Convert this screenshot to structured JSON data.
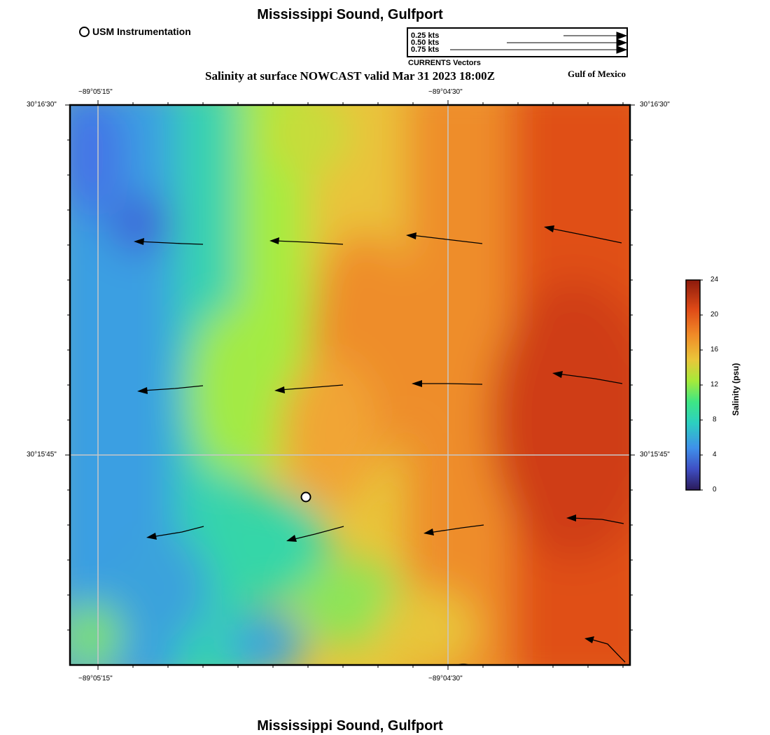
{
  "header": {
    "title": "Mississippi Sound, Gulfport",
    "footer_title": "Mississippi Sound, Gulfport",
    "subtitle": "Salinity at surface NOWCAST valid Mar 31 2023 18:00Z",
    "region": "Gulf of Mexico"
  },
  "legend": {
    "instrument_label": "USM Instrumentation",
    "vector_scale": [
      "0.25 kts",
      "0.50 kts",
      "0.75 kts"
    ],
    "vector_caption": "CURRENTS Vectors"
  },
  "map": {
    "lon_labels_top": [
      "−89°05'15\"",
      "−89°04'30\""
    ],
    "lon_labels_bottom": [
      "−89°05'15\"",
      "−89°04'30\""
    ],
    "lat_labels_left": [
      "30°16'30\"",
      "30°15'45\""
    ],
    "lat_labels_right": [
      "30°16'30\"",
      "30°15'45\""
    ],
    "instrument_station": "usm-station"
  },
  "colorbar": {
    "title": "Salinity (psu)",
    "ticks": [
      "24",
      "20",
      "16",
      "12",
      "8",
      "4",
      "0"
    ],
    "min": 0,
    "max": 24,
    "colormap": [
      "#2b1a5a",
      "#3f6fe0",
      "#2cd0c0",
      "#3ee684",
      "#a6ea3a",
      "#e9c63a",
      "#f08a27",
      "#df4a17",
      "#8c1a0c"
    ]
  }
}
